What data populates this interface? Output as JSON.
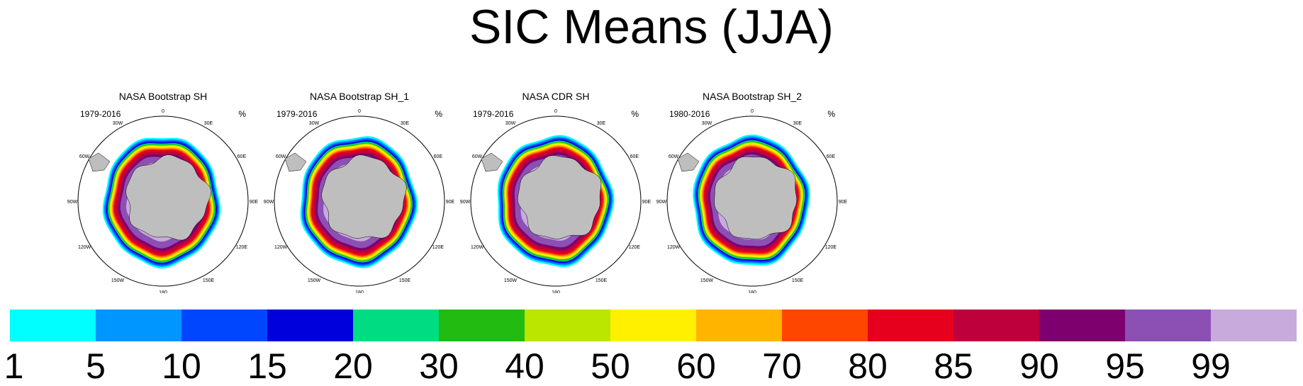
{
  "title": "SIC Means (JJA)",
  "panels": [
    {
      "title": "NASA Bootstrap SH",
      "period": "1979-2016",
      "unit": "%"
    },
    {
      "title": "NASA Bootstrap SH_1",
      "period": "1979-2016",
      "unit": "%"
    },
    {
      "title": "NASA CDR SH",
      "period": "1979-2016",
      "unit": "%"
    },
    {
      "title": "NASA Bootstrap SH_2",
      "period": "1980-2016",
      "unit": "%"
    }
  ],
  "longitude_labels": [
    "0",
    "30E",
    "60E",
    "90E",
    "120E",
    "150E",
    "180",
    "150W",
    "120W",
    "90W",
    "60W",
    "30W"
  ],
  "colorbar": {
    "levels": [
      "1",
      "5",
      "10",
      "15",
      "20",
      "30",
      "40",
      "50",
      "60",
      "70",
      "80",
      "85",
      "90",
      "95",
      "99"
    ],
    "colors": [
      "#00ffff",
      "#0096ff",
      "#0046ff",
      "#0000dc",
      "#00dc82",
      "#22bb11",
      "#bbe600",
      "#fff000",
      "#ffb400",
      "#ff4600",
      "#e6001e",
      "#be003c",
      "#7d006e",
      "#8c50b4",
      "#c8aadc"
    ]
  },
  "land_color": "#bebebe"
}
